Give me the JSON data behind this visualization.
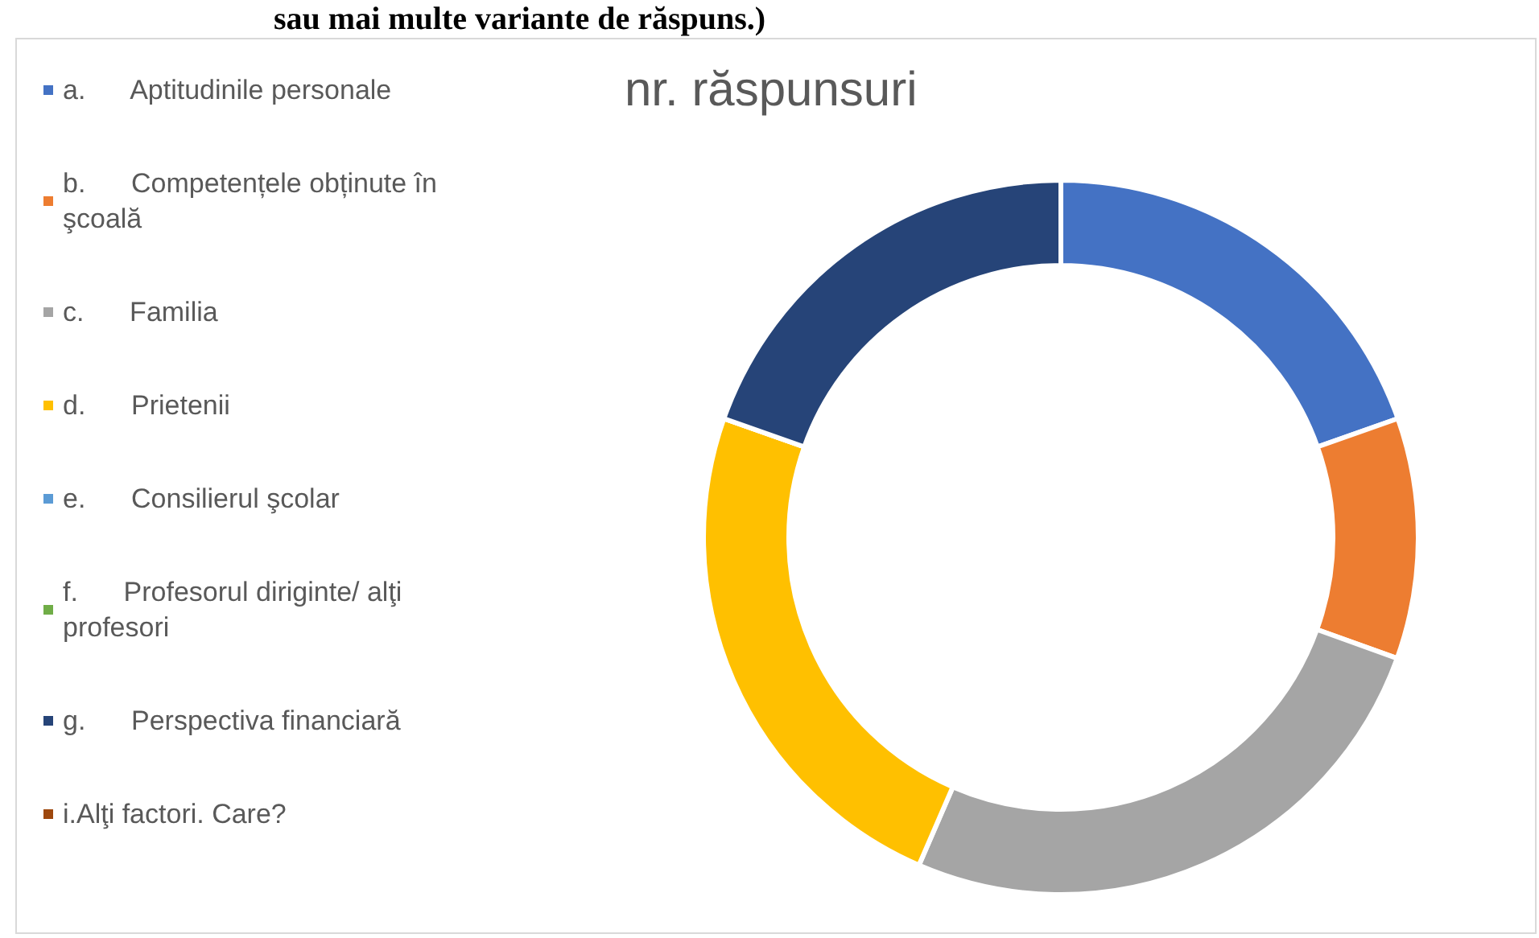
{
  "chart_data": {
    "type": "donut",
    "title": "nr. răspunsuri",
    "annotations": [
      "sau mai multe variante de răspuns.)"
    ],
    "categories": [
      "a.      Aptitudinile personale",
      "b.      Competențele obținute în şcoală",
      "c.      Familia",
      "d.      Prietenii",
      "e.      Consilierul şcolar",
      "f.      Profesorul diriginte/ alţi profesori",
      "g.      Perspectiva financiară",
      "i.Alţi factori. Care?"
    ],
    "values": [
      19.6,
      10.9,
      26.0,
      23.9,
      0,
      0,
      19.6,
      0
    ],
    "colors": [
      "#4472c4",
      "#ed7d31",
      "#a5a5a5",
      "#ffc000",
      "#5b9bd5",
      "#70ad47",
      "#264478",
      "#9e480e"
    ],
    "legend": "left"
  }
}
